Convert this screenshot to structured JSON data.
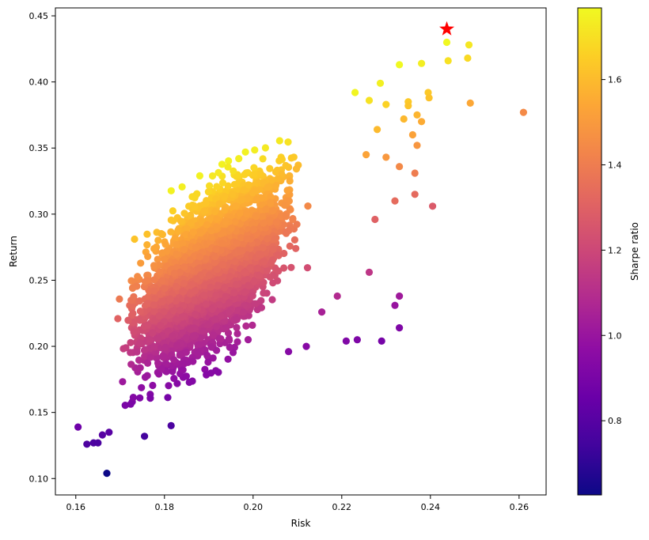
{
  "chart_data": {
    "type": "scatter",
    "title": "",
    "xlabel": "Risk",
    "ylabel": "Return",
    "xlim": [
      0.1554,
      0.2661
    ],
    "ylim": [
      0.0876,
      0.456
    ],
    "xticks": [
      0.16,
      0.18,
      0.2,
      0.22,
      0.24,
      0.26
    ],
    "xtick_labels": [
      "0.16",
      "0.18",
      "0.20",
      "0.22",
      "0.24",
      "0.26"
    ],
    "yticks": [
      0.1,
      0.15,
      0.2,
      0.25,
      0.3,
      0.35,
      0.4,
      0.45
    ],
    "ytick_labels": [
      "0.10",
      "0.15",
      "0.20",
      "0.25",
      "0.30",
      "0.35",
      "0.40",
      "0.45"
    ],
    "grid": false,
    "color_metric": "return / risk",
    "colorbar": {
      "label": "Sharpe ratio",
      "colormap": "plasma",
      "range": [
        0.626,
        1.768
      ],
      "ticks": [
        0.8,
        1.0,
        1.2,
        1.4,
        1.6
      ],
      "tick_labels": [
        "0.8",
        "1.0",
        "1.2",
        "1.4",
        "1.6"
      ]
    },
    "max_sharpe_marker": {
      "risk": 0.2437,
      "return": 0.44,
      "marker": "star",
      "color": "#ff0000"
    },
    "dense_cloud": {
      "count": 4000,
      "risk_range": [
        0.168,
        0.213
      ],
      "return_center_at_risk_0_19": 0.255,
      "return_slope": 2.6,
      "return_spread_sd": 0.025,
      "sharpe_bounds": [
        0.88,
        1.75
      ]
    },
    "points": [
      [
        0.2437,
        0.43
      ],
      [
        0.2487,
        0.428
      ],
      [
        0.244,
        0.416
      ],
      [
        0.2484,
        0.418
      ],
      [
        0.233,
        0.413
      ],
      [
        0.238,
        0.414
      ],
      [
        0.2395,
        0.392
      ],
      [
        0.2397,
        0.388
      ],
      [
        0.2287,
        0.399
      ],
      [
        0.235,
        0.385
      ],
      [
        0.235,
        0.382
      ],
      [
        0.249,
        0.384
      ],
      [
        0.261,
        0.377
      ],
      [
        0.234,
        0.372
      ],
      [
        0.238,
        0.37
      ],
      [
        0.237,
        0.375
      ],
      [
        0.236,
        0.36
      ],
      [
        0.237,
        0.352
      ],
      [
        0.233,
        0.336
      ],
      [
        0.2365,
        0.331
      ],
      [
        0.2365,
        0.315
      ],
      [
        0.232,
        0.31
      ],
      [
        0.2405,
        0.306
      ],
      [
        0.2275,
        0.296
      ],
      [
        0.233,
        0.238
      ],
      [
        0.232,
        0.231
      ],
      [
        0.233,
        0.214
      ],
      [
        0.229,
        0.204
      ],
      [
        0.2235,
        0.205
      ],
      [
        0.2262,
        0.256
      ],
      [
        0.221,
        0.204
      ],
      [
        0.219,
        0.238
      ],
      [
        0.2155,
        0.226
      ],
      [
        0.212,
        0.2
      ],
      [
        0.208,
        0.196
      ],
      [
        0.167,
        0.104
      ],
      [
        0.1605,
        0.139
      ],
      [
        0.1625,
        0.126
      ],
      [
        0.164,
        0.127
      ],
      [
        0.165,
        0.127
      ],
      [
        0.1755,
        0.132
      ],
      [
        0.1815,
        0.14
      ],
      [
        0.166,
        0.133
      ],
      [
        0.1675,
        0.135
      ],
      [
        0.2262,
        0.386
      ],
      [
        0.23,
        0.383
      ],
      [
        0.223,
        0.392
      ],
      [
        0.228,
        0.364
      ],
      [
        0.2255,
        0.345
      ],
      [
        0.23,
        0.343
      ]
    ]
  }
}
